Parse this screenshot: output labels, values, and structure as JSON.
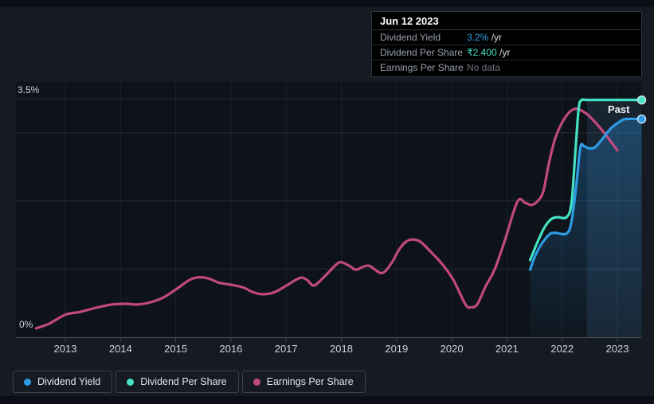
{
  "tooltip": {
    "date": "Jun 12 2023",
    "rows": [
      {
        "label": "Dividend Yield",
        "value": "3.2%",
        "suffix": " /yr",
        "color": "#2f9fe8"
      },
      {
        "label": "Dividend Per Share",
        "value": "₹2.400",
        "suffix": " /yr",
        "color": "#45e3c5"
      },
      {
        "label": "Earnings Per Share",
        "value": "No data",
        "suffix": "",
        "color": "#6e757e"
      }
    ]
  },
  "chart": {
    "past_label": "Past",
    "y_axis_top_label": "3.5%",
    "y_axis_bottom_label": "0%"
  },
  "legend": [
    {
      "label": "Dividend Yield",
      "color": "#2d9ce4"
    },
    {
      "label": "Dividend Per Share",
      "color": "#43e2c5"
    },
    {
      "label": "Earnings Per Share",
      "color": "#c2497f"
    }
  ],
  "chart_data": {
    "type": "line",
    "title": "Dividend history (Past)",
    "x_ticks": [
      2013,
      2014,
      2015,
      2016,
      2017,
      2018,
      2019,
      2020,
      2021,
      2022,
      2023
    ],
    "xlim": [
      2012.1,
      2023.45
    ],
    "ylim": [
      0,
      3.5
    ],
    "y_gridline_values": [
      1,
      2,
      3,
      3.5
    ],
    "grid": true,
    "legend_position": "bottom-left",
    "unit_note": "y values in % on Dividend-Yield axis; DPS/EPS plotted on same relative scale; DPS ends at ₹2.400/yr = 3.48rel, Yield ends at 3.2%",
    "highlight_band_x": [
      2022.45,
      2023.44
    ],
    "series": [
      {
        "name": "Earnings Per Share",
        "color": "#c2497f",
        "end_marker": false,
        "area": false,
        "points": [
          [
            2012.47,
            0.13
          ],
          [
            2012.71,
            0.2
          ],
          [
            2013.0,
            0.33
          ],
          [
            2013.26,
            0.37
          ],
          [
            2013.55,
            0.43
          ],
          [
            2013.84,
            0.48
          ],
          [
            2014.1,
            0.49
          ],
          [
            2014.3,
            0.48
          ],
          [
            2014.53,
            0.51
          ],
          [
            2014.77,
            0.58
          ],
          [
            2015.02,
            0.71
          ],
          [
            2015.25,
            0.84
          ],
          [
            2015.42,
            0.88
          ],
          [
            2015.6,
            0.86
          ],
          [
            2015.78,
            0.8
          ],
          [
            2016.0,
            0.77
          ],
          [
            2016.22,
            0.73
          ],
          [
            2016.4,
            0.66
          ],
          [
            2016.58,
            0.63
          ],
          [
            2016.79,
            0.66
          ],
          [
            2017.01,
            0.76
          ],
          [
            2017.25,
            0.87
          ],
          [
            2017.38,
            0.84
          ],
          [
            2017.51,
            0.76
          ],
          [
            2017.73,
            0.92
          ],
          [
            2017.9,
            1.06
          ],
          [
            2018.0,
            1.1
          ],
          [
            2018.16,
            1.04
          ],
          [
            2018.27,
            0.99
          ],
          [
            2018.49,
            1.05
          ],
          [
            2018.73,
            0.94
          ],
          [
            2018.91,
            1.09
          ],
          [
            2019.05,
            1.29
          ],
          [
            2019.21,
            1.42
          ],
          [
            2019.41,
            1.41
          ],
          [
            2019.6,
            1.27
          ],
          [
            2019.84,
            1.06
          ],
          [
            2020.03,
            0.84
          ],
          [
            2020.25,
            0.48
          ],
          [
            2020.35,
            0.44
          ],
          [
            2020.46,
            0.48
          ],
          [
            2020.61,
            0.74
          ],
          [
            2020.78,
            1.0
          ],
          [
            2020.97,
            1.44
          ],
          [
            2021.19,
            1.99
          ],
          [
            2021.33,
            1.97
          ],
          [
            2021.45,
            1.94
          ],
          [
            2021.56,
            2.0
          ],
          [
            2021.66,
            2.14
          ],
          [
            2021.76,
            2.55
          ],
          [
            2021.88,
            2.93
          ],
          [
            2022.06,
            3.23
          ],
          [
            2022.23,
            3.35
          ],
          [
            2022.42,
            3.29
          ],
          [
            2022.59,
            3.16
          ],
          [
            2022.78,
            2.98
          ],
          [
            2023.0,
            2.74
          ]
        ]
      },
      {
        "name": "Dividend Per Share",
        "color": "#43e2c5",
        "end_marker": true,
        "area": false,
        "points": [
          [
            2021.42,
            1.13
          ],
          [
            2021.54,
            1.37
          ],
          [
            2021.68,
            1.61
          ],
          [
            2021.8,
            1.73
          ],
          [
            2021.91,
            1.76
          ],
          [
            2022.08,
            1.76
          ],
          [
            2022.17,
            1.97
          ],
          [
            2022.24,
            2.72
          ],
          [
            2022.3,
            3.36
          ],
          [
            2022.36,
            3.48
          ],
          [
            2022.49,
            3.48
          ],
          [
            2023.44,
            3.48
          ]
        ]
      },
      {
        "name": "Dividend Yield",
        "color": "#2d9ce4",
        "end_marker": true,
        "area": true,
        "points": [
          [
            2021.42,
            0.99
          ],
          [
            2021.51,
            1.19
          ],
          [
            2021.62,
            1.36
          ],
          [
            2021.77,
            1.51
          ],
          [
            2021.88,
            1.53
          ],
          [
            2022.08,
            1.52
          ],
          [
            2022.17,
            1.7
          ],
          [
            2022.26,
            2.26
          ],
          [
            2022.33,
            2.79
          ],
          [
            2022.4,
            2.8
          ],
          [
            2022.49,
            2.77
          ],
          [
            2022.6,
            2.79
          ],
          [
            2022.75,
            2.93
          ],
          [
            2022.89,
            3.07
          ],
          [
            2023.04,
            3.16
          ],
          [
            2023.15,
            3.2
          ],
          [
            2023.44,
            3.2
          ]
        ]
      }
    ]
  }
}
